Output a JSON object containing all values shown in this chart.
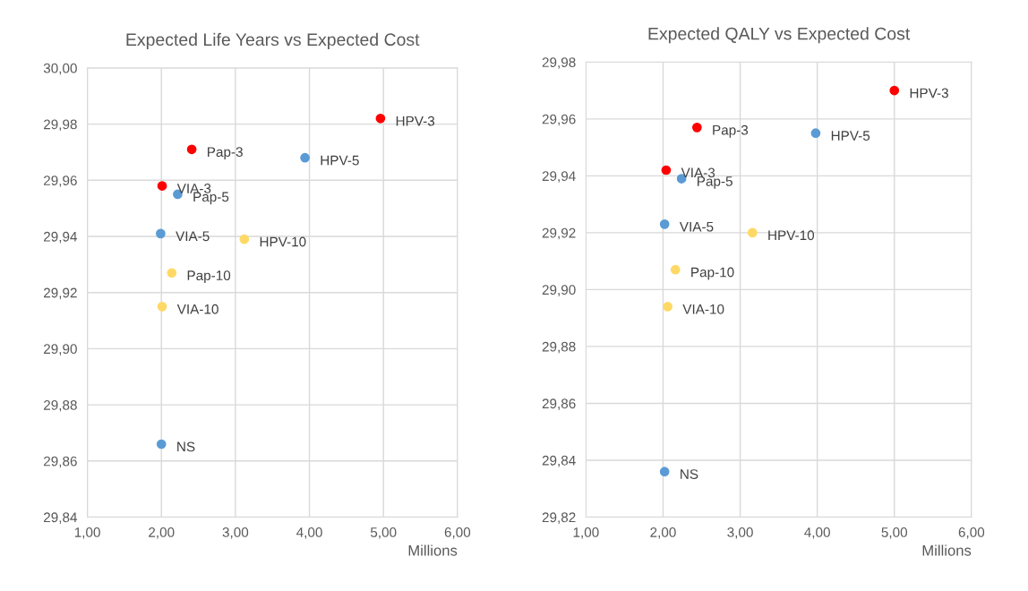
{
  "chart_data": [
    {
      "type": "scatter",
      "title": "Expected Life Years vs Expected Cost",
      "xlabel": "Millions",
      "grid": true,
      "marker": "circle",
      "xlim": [
        1,
        6
      ],
      "xticks": [
        {
          "value": 1,
          "label": "1,00"
        },
        {
          "value": 2,
          "label": "2,00"
        },
        {
          "value": 3,
          "label": "3,00"
        },
        {
          "value": 4,
          "label": "4,00"
        },
        {
          "value": 5,
          "label": "5,00"
        },
        {
          "value": 6,
          "label": "6,00"
        }
      ],
      "ylim": [
        29.84,
        30.0
      ],
      "yticks": [
        {
          "value": 29.84,
          "label": "29,84"
        },
        {
          "value": 29.86,
          "label": "29,86"
        },
        {
          "value": 29.88,
          "label": "29,88"
        },
        {
          "value": 29.9,
          "label": "29,90"
        },
        {
          "value": 29.92,
          "label": "29,92"
        },
        {
          "value": 29.94,
          "label": "29,94"
        },
        {
          "value": 29.96,
          "label": "29,96"
        },
        {
          "value": 29.98,
          "label": "29,98"
        },
        {
          "value": 30.0,
          "label": "30,00"
        }
      ],
      "series": [
        {
          "color": "#ff0000",
          "x": [
            4.96,
            2.41,
            2.01
          ],
          "values": [
            29.982,
            29.971,
            29.958
          ]
        },
        {
          "color": "#5b9bd5",
          "x": [
            3.94,
            2.22,
            1.99,
            2.0
          ],
          "values": [
            29.968,
            29.955,
            29.941,
            29.866
          ]
        },
        {
          "color": "#ffd966",
          "x": [
            3.12,
            2.14,
            2.01
          ],
          "values": [
            29.939,
            29.927,
            29.915
          ]
        }
      ],
      "annotations": [
        {
          "text": "HPV-3",
          "x": 4.96,
          "y": 29.982
        },
        {
          "text": "Pap-3",
          "x": 2.41,
          "y": 29.971
        },
        {
          "text": "VIA-3",
          "x": 2.01,
          "y": 29.958
        },
        {
          "text": "HPV-5",
          "x": 3.94,
          "y": 29.968
        },
        {
          "text": "Pap-5",
          "x": 2.22,
          "y": 29.955
        },
        {
          "text": "VIA-5",
          "x": 1.99,
          "y": 29.941
        },
        {
          "text": "NS",
          "x": 2.0,
          "y": 29.866
        },
        {
          "text": "HPV-10",
          "x": 3.12,
          "y": 29.939
        },
        {
          "text": "Pap-10",
          "x": 2.14,
          "y": 29.927
        },
        {
          "text": "VIA-10",
          "x": 2.01,
          "y": 29.915
        }
      ]
    },
    {
      "type": "scatter",
      "title": "Expected QALY vs Expected Cost",
      "xlabel": "Millions",
      "grid": true,
      "marker": "circle",
      "xlim": [
        1,
        6
      ],
      "xticks": [
        {
          "value": 1,
          "label": "1,00"
        },
        {
          "value": 2,
          "label": "2,00"
        },
        {
          "value": 3,
          "label": "3,00"
        },
        {
          "value": 4,
          "label": "4,00"
        },
        {
          "value": 5,
          "label": "5,00"
        },
        {
          "value": 6,
          "label": "6,00"
        }
      ],
      "ylim": [
        29.82,
        29.98
      ],
      "yticks": [
        {
          "value": 29.82,
          "label": "29,82"
        },
        {
          "value": 29.84,
          "label": "29,84"
        },
        {
          "value": 29.86,
          "label": "29,86"
        },
        {
          "value": 29.88,
          "label": "29,88"
        },
        {
          "value": 29.9,
          "label": "29,90"
        },
        {
          "value": 29.92,
          "label": "29,92"
        },
        {
          "value": 29.94,
          "label": "29,94"
        },
        {
          "value": 29.96,
          "label": "29,96"
        },
        {
          "value": 29.98,
          "label": "29,98"
        }
      ],
      "series": [
        {
          "color": "#ff0000",
          "x": [
            5.0,
            2.44,
            2.04
          ],
          "values": [
            29.97,
            29.957,
            29.942
          ]
        },
        {
          "color": "#5b9bd5",
          "x": [
            3.98,
            2.24,
            2.02,
            2.02
          ],
          "values": [
            29.955,
            29.939,
            29.923,
            29.836
          ]
        },
        {
          "color": "#ffd966",
          "x": [
            3.16,
            2.16,
            2.06
          ],
          "values": [
            29.92,
            29.907,
            29.894
          ]
        }
      ],
      "annotations": [
        {
          "text": "HPV-3",
          "x": 5.0,
          "y": 29.97
        },
        {
          "text": "Pap-3",
          "x": 2.44,
          "y": 29.957
        },
        {
          "text": "VIA-3",
          "x": 2.04,
          "y": 29.942
        },
        {
          "text": "HPV-5",
          "x": 3.98,
          "y": 29.955
        },
        {
          "text": "Pap-5",
          "x": 2.24,
          "y": 29.939
        },
        {
          "text": "VIA-5",
          "x": 2.02,
          "y": 29.923
        },
        {
          "text": "NS",
          "x": 2.02,
          "y": 29.836
        },
        {
          "text": "HPV-10",
          "x": 3.16,
          "y": 29.92
        },
        {
          "text": "Pap-10",
          "x": 2.16,
          "y": 29.907
        },
        {
          "text": "VIA-10",
          "x": 2.06,
          "y": 29.894
        }
      ]
    }
  ]
}
